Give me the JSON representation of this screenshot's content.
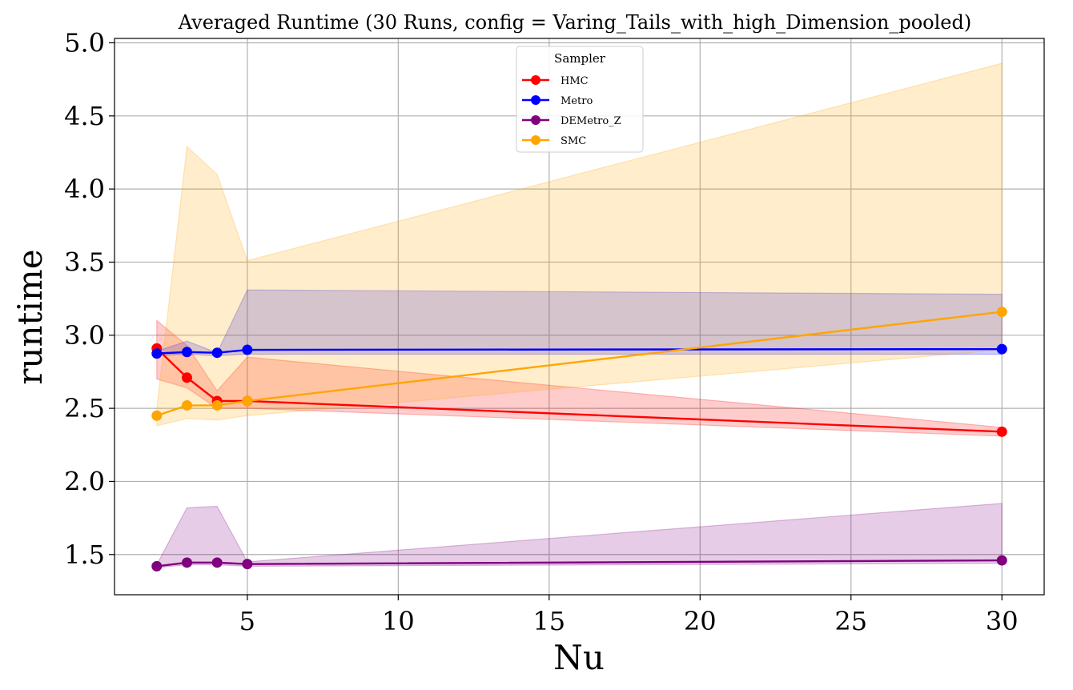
{
  "chart_data": {
    "type": "line",
    "title": "Averaged Runtime (30 Runs, config = Varing_Tails_with_high_Dimension_pooled)",
    "xlabel": "Nu",
    "ylabel": "runtime",
    "xlim": [
      0.6,
      31.4
    ],
    "ylim": [
      1.225,
      5.03
    ],
    "xticks": [
      5,
      10,
      15,
      20,
      25,
      30
    ],
    "yticks": [
      1.5,
      2.0,
      2.5,
      3.0,
      3.5,
      4.0,
      4.5,
      5.0
    ],
    "xtick_labels": [
      "5",
      "10",
      "15",
      "20",
      "25",
      "30"
    ],
    "ytick_labels": [
      "1.5",
      "2.0",
      "2.5",
      "3.0",
      "3.5",
      "4.0",
      "4.5",
      "5.0"
    ],
    "grid": true,
    "legend": {
      "title": "Sampler",
      "placement": "top-center"
    },
    "x": [
      2,
      3,
      4,
      5,
      30
    ],
    "series": [
      {
        "name": "HMC",
        "color": "#ff0000",
        "values": [
          2.91,
          2.71,
          2.55,
          2.55,
          2.34
        ],
        "lower": [
          2.7,
          2.64,
          2.5,
          2.5,
          2.31
        ],
        "upper": [
          3.1,
          2.93,
          2.62,
          2.85,
          2.37
        ]
      },
      {
        "name": "Metro",
        "color": "#0000ff",
        "values": [
          2.875,
          2.885,
          2.88,
          2.9,
          2.905
        ],
        "lower": [
          2.86,
          2.87,
          2.86,
          2.87,
          2.87
        ],
        "upper": [
          2.89,
          2.96,
          2.88,
          3.31,
          3.28
        ]
      },
      {
        "name": "DEMetro_Z",
        "color": "#800080",
        "values": [
          1.42,
          1.445,
          1.445,
          1.435,
          1.46
        ],
        "lower": [
          1.41,
          1.43,
          1.43,
          1.42,
          1.44
        ],
        "upper": [
          1.43,
          1.82,
          1.83,
          1.45,
          1.85
        ]
      },
      {
        "name": "SMC",
        "color": "#ffa500",
        "values": [
          2.45,
          2.52,
          2.52,
          2.55,
          3.16
        ],
        "lower": [
          2.38,
          2.43,
          2.42,
          2.45,
          2.9
        ],
        "upper": [
          2.5,
          4.29,
          4.1,
          3.51,
          4.86
        ]
      }
    ]
  }
}
